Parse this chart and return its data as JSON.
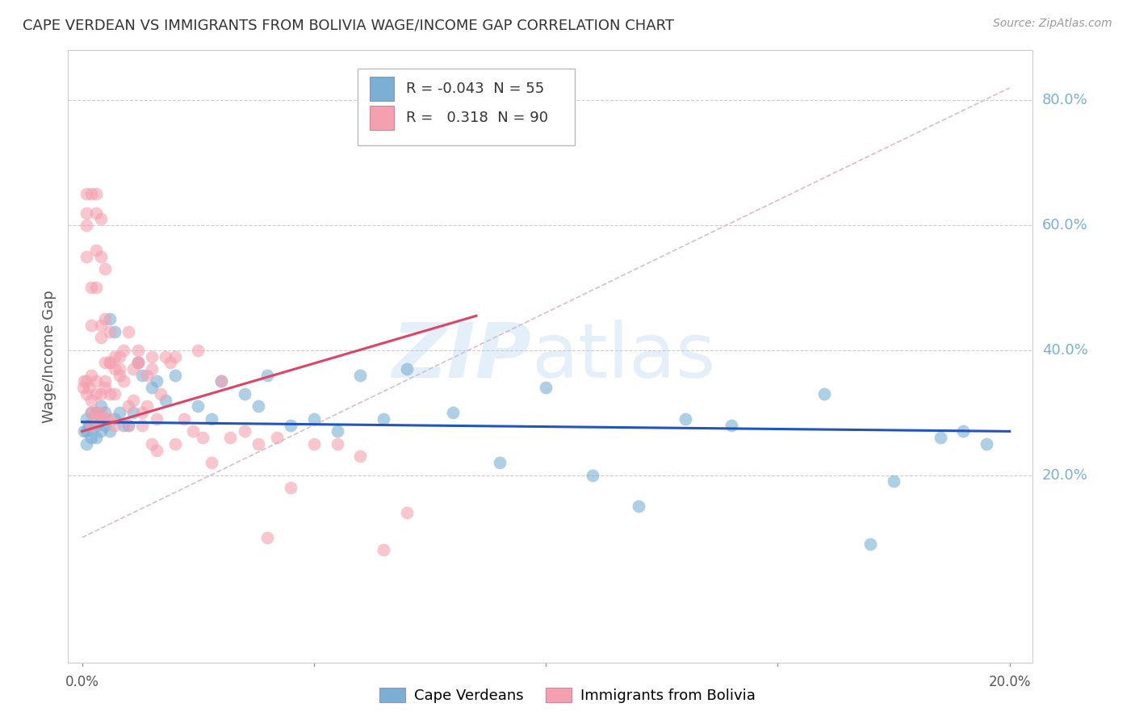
{
  "title": "CAPE VERDEAN VS IMMIGRANTS FROM BOLIVIA WAGE/INCOME GAP CORRELATION CHART",
  "source": "Source: ZipAtlas.com",
  "ylabel": "Wage/Income Gap",
  "y_ticks_right": [
    0.2,
    0.4,
    0.6,
    0.8
  ],
  "y_tick_labels_right": [
    "20.0%",
    "40.0%",
    "60.0%",
    "80.0%"
  ],
  "x_lim": [
    0.0,
    0.2
  ],
  "y_lim": [
    -0.1,
    0.88
  ],
  "legend_blue_r": "-0.043",
  "legend_blue_n": "55",
  "legend_pink_r": "0.318",
  "legend_pink_n": "90",
  "blue_color": "#7BAFD4",
  "pink_color": "#F4A0B0",
  "blue_line_color": "#2255BB",
  "pink_line_color": "#DD4466",
  "dashed_line_color": "#DDBBCC",
  "blue_dots_x": [
    0.0005,
    0.001,
    0.001,
    0.001,
    0.0015,
    0.002,
    0.002,
    0.002,
    0.003,
    0.003,
    0.003,
    0.004,
    0.004,
    0.004,
    0.005,
    0.005,
    0.006,
    0.006,
    0.007,
    0.007,
    0.008,
    0.009,
    0.01,
    0.011,
    0.012,
    0.013,
    0.015,
    0.016,
    0.018,
    0.02,
    0.025,
    0.028,
    0.03,
    0.035,
    0.038,
    0.04,
    0.045,
    0.05,
    0.055,
    0.06,
    0.065,
    0.07,
    0.08,
    0.09,
    0.1,
    0.11,
    0.12,
    0.13,
    0.14,
    0.16,
    0.17,
    0.175,
    0.185,
    0.19,
    0.195
  ],
  "blue_dots_y": [
    0.27,
    0.29,
    0.27,
    0.25,
    0.28,
    0.3,
    0.28,
    0.26,
    0.28,
    0.3,
    0.26,
    0.31,
    0.29,
    0.27,
    0.28,
    0.3,
    0.45,
    0.27,
    0.43,
    0.29,
    0.3,
    0.28,
    0.28,
    0.3,
    0.38,
    0.36,
    0.34,
    0.35,
    0.32,
    0.36,
    0.31,
    0.29,
    0.35,
    0.33,
    0.31,
    0.36,
    0.28,
    0.29,
    0.27,
    0.36,
    0.29,
    0.37,
    0.3,
    0.22,
    0.34,
    0.2,
    0.15,
    0.29,
    0.28,
    0.33,
    0.09,
    0.19,
    0.26,
    0.27,
    0.25
  ],
  "pink_dots_x": [
    0.0003,
    0.0005,
    0.001,
    0.001,
    0.001,
    0.001,
    0.0015,
    0.002,
    0.002,
    0.002,
    0.002,
    0.003,
    0.003,
    0.003,
    0.003,
    0.004,
    0.004,
    0.004,
    0.005,
    0.005,
    0.005,
    0.006,
    0.006,
    0.006,
    0.007,
    0.007,
    0.007,
    0.008,
    0.008,
    0.009,
    0.009,
    0.01,
    0.01,
    0.011,
    0.011,
    0.012,
    0.012,
    0.013,
    0.013,
    0.014,
    0.014,
    0.015,
    0.015,
    0.016,
    0.016,
    0.017,
    0.018,
    0.019,
    0.02,
    0.022,
    0.024,
    0.026,
    0.028,
    0.03,
    0.032,
    0.035,
    0.038,
    0.04,
    0.042,
    0.045,
    0.05,
    0.055,
    0.06,
    0.065,
    0.07,
    0.003,
    0.003,
    0.004,
    0.004,
    0.005,
    0.001,
    0.001,
    0.002,
    0.002,
    0.002,
    0.003,
    0.003,
    0.004,
    0.004,
    0.005,
    0.005,
    0.006,
    0.006,
    0.007,
    0.008,
    0.01,
    0.012,
    0.015,
    0.02,
    0.025
  ],
  "pink_dots_y": [
    0.34,
    0.35,
    0.62,
    0.6,
    0.35,
    0.33,
    0.34,
    0.36,
    0.32,
    0.3,
    0.28,
    0.35,
    0.33,
    0.3,
    0.29,
    0.33,
    0.3,
    0.29,
    0.35,
    0.34,
    0.29,
    0.38,
    0.33,
    0.29,
    0.37,
    0.33,
    0.28,
    0.39,
    0.36,
    0.4,
    0.35,
    0.31,
    0.28,
    0.37,
    0.32,
    0.4,
    0.38,
    0.3,
    0.28,
    0.36,
    0.31,
    0.37,
    0.25,
    0.29,
    0.24,
    0.33,
    0.39,
    0.38,
    0.25,
    0.29,
    0.27,
    0.26,
    0.22,
    0.35,
    0.26,
    0.27,
    0.25,
    0.1,
    0.26,
    0.18,
    0.25,
    0.25,
    0.23,
    0.08,
    0.14,
    0.56,
    0.5,
    0.44,
    0.42,
    0.38,
    0.65,
    0.55,
    0.65,
    0.5,
    0.44,
    0.65,
    0.62,
    0.61,
    0.55,
    0.53,
    0.45,
    0.43,
    0.38,
    0.39,
    0.37,
    0.43,
    0.38,
    0.39,
    0.39,
    0.4
  ],
  "blue_line_x": [
    0.0,
    0.2
  ],
  "blue_line_y": [
    0.285,
    0.27
  ],
  "pink_line_x": [
    0.0,
    0.085
  ],
  "pink_line_y": [
    0.27,
    0.455
  ],
  "dashed_line_x": [
    0.0,
    0.2
  ],
  "dashed_line_y": [
    0.1,
    0.82
  ]
}
